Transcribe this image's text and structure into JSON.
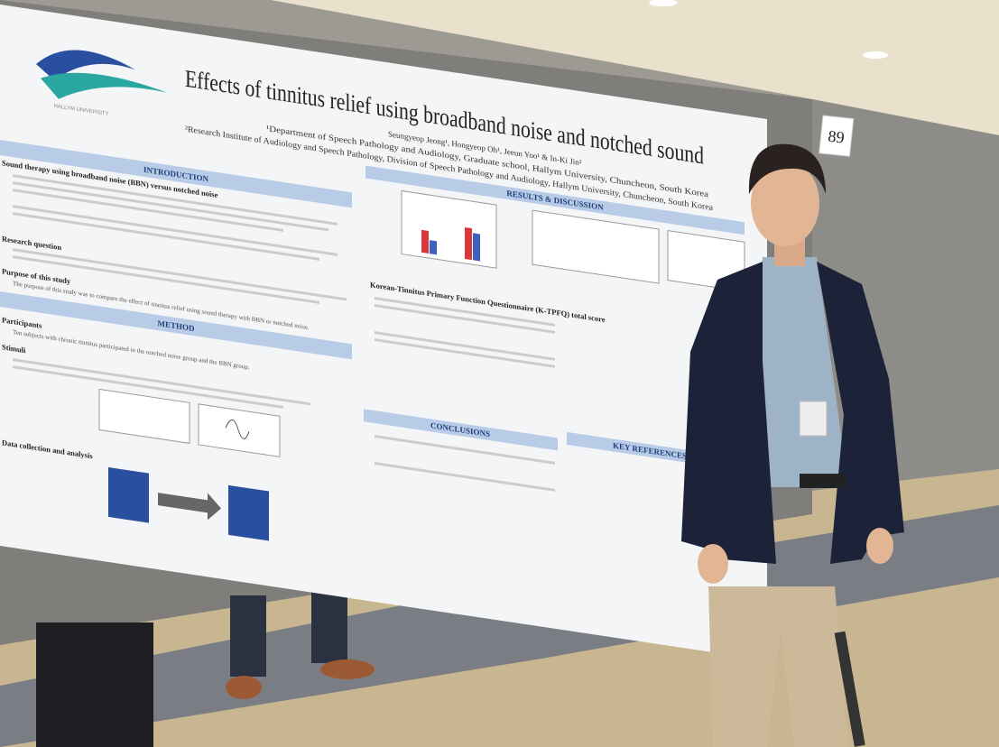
{
  "poster": {
    "logo_text": "HALLYM UNIVERSITY",
    "title": "Effects of tinnitus relief using broadband noise and notched sound",
    "authors": "Seungyeop Jeong¹, Hongyeop Oh¹, Jeeun Yoo¹ & In-Ki Jin²",
    "affiliations": [
      "¹Department of Speech Pathology and Audiology, Graduate school, Hallym University, Chuncheon, South Korea",
      "²Research Institute of Audiology and Speech Pathology, Division of Speech Pathology and Audiology, Hallym University, Chuncheon, South Korea"
    ],
    "sections": [
      "INTRODUCTION",
      "METHOD",
      "RESULTS & DISCUSSION",
      "CONCLUSIONS",
      "KEY REFERENCES"
    ],
    "subheadings": [
      "Sound therapy using broadband noise (BBN) versus notched noise",
      "Research question",
      "Purpose of this study",
      "Participants",
      "Stimuli",
      "Data collection and analysis"
    ],
    "purpose_text": "The purpose of this study was to compare the effect of tinnitus relief using sound therapy with BBN or notched noise.",
    "participants_text": "Ten subjects with chronic tinnitus participated in the notched noise group and the BBN group.",
    "subsection": "Korean-Tinnitus Primary Function Questionnaire (K-TPFQ) total score"
  },
  "board_number": "89"
}
